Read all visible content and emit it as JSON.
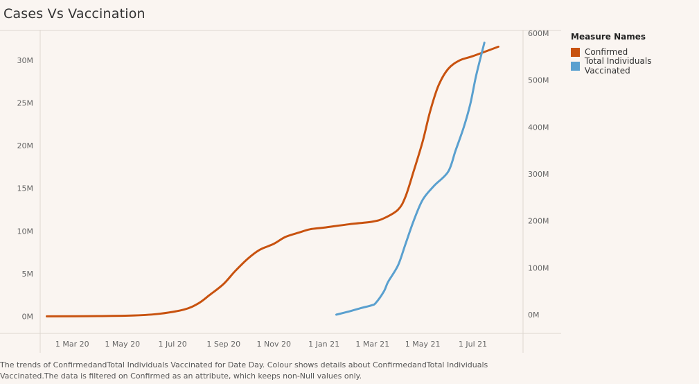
{
  "title": "Cases Vs Vaccination",
  "legend": {
    "title": "Measure Names",
    "items": [
      {
        "label": "Confirmed",
        "color": "#c8520f"
      },
      {
        "label": "Total Individuals Vaccinated",
        "color": "#5aa0cf"
      }
    ]
  },
  "caption": "The trends of ConfirmedandTotal Individuals Vaccinated for Date Day. Colour shows details about ConfirmedandTotal Individuals Vaccinated.The data is filtered on Confirmed as an attribute, which keeps non-Null values only.",
  "chart_data": {
    "type": "line",
    "x_ticks": [
      {
        "date": "2020-03-01",
        "label": "1 Mar 20"
      },
      {
        "date": "2020-05-01",
        "label": "1 May 20"
      },
      {
        "date": "2020-07-01",
        "label": "1 Jul 20"
      },
      {
        "date": "2020-09-01",
        "label": "1 Sep 20"
      },
      {
        "date": "2020-11-01",
        "label": "1 Nov 20"
      },
      {
        "date": "2021-01-01",
        "label": "1 Jan 21"
      },
      {
        "date": "2021-03-01",
        "label": "1 Mar 21"
      },
      {
        "date": "2021-05-01",
        "label": "1 May 21"
      },
      {
        "date": "2021-07-01",
        "label": "1 Jul 21"
      }
    ],
    "xlim": [
      "2020-01-22",
      "2021-08-31"
    ],
    "y_left": {
      "ticks": [
        0,
        5000000,
        10000000,
        15000000,
        20000000,
        25000000,
        30000000
      ],
      "tick_labels": [
        "0M",
        "5M",
        "10M",
        "15M",
        "20M",
        "25M",
        "30M"
      ],
      "range": [
        -2000000,
        33500000
      ]
    },
    "y_right": {
      "ticks": [
        0,
        100000000,
        200000000,
        300000000,
        400000000,
        500000000,
        600000000
      ],
      "tick_labels": [
        "0M",
        "100M",
        "200M",
        "300M",
        "400M",
        "500M",
        "600M"
      ],
      "range": [
        -40000000,
        606000000
      ]
    },
    "series": [
      {
        "name": "Confirmed",
        "axis": "left",
        "color": "#c8520f",
        "points": [
          [
            "2020-01-30",
            0
          ],
          [
            "2020-04-01",
            30000
          ],
          [
            "2020-05-15",
            100000
          ],
          [
            "2020-06-15",
            300000
          ],
          [
            "2020-07-15",
            800000
          ],
          [
            "2020-08-01",
            1500000
          ],
          [
            "2020-08-15",
            2500000
          ],
          [
            "2020-09-01",
            3800000
          ],
          [
            "2020-09-15",
            5300000
          ],
          [
            "2020-10-01",
            6800000
          ],
          [
            "2020-10-15",
            7800000
          ],
          [
            "2020-11-01",
            8500000
          ],
          [
            "2020-11-15",
            9300000
          ],
          [
            "2020-12-01",
            9800000
          ],
          [
            "2020-12-15",
            10200000
          ],
          [
            "2021-01-01",
            10400000
          ],
          [
            "2021-02-01",
            10800000
          ],
          [
            "2021-03-01",
            11100000
          ],
          [
            "2021-03-15",
            11500000
          ],
          [
            "2021-04-01",
            12500000
          ],
          [
            "2021-04-10",
            14000000
          ],
          [
            "2021-04-20",
            17000000
          ],
          [
            "2021-05-01",
            20500000
          ],
          [
            "2021-05-10",
            24000000
          ],
          [
            "2021-05-20",
            27000000
          ],
          [
            "2021-06-01",
            29000000
          ],
          [
            "2021-06-15",
            30000000
          ],
          [
            "2021-07-01",
            30500000
          ],
          [
            "2021-08-01",
            31600000
          ]
        ]
      },
      {
        "name": "Total Individuals Vaccinated",
        "axis": "right",
        "color": "#5aa0cf",
        "points": [
          [
            "2021-01-16",
            0
          ],
          [
            "2021-02-01",
            7000000
          ],
          [
            "2021-02-15",
            14000000
          ],
          [
            "2021-02-28",
            20000000
          ],
          [
            "2021-03-05",
            25000000
          ],
          [
            "2021-03-15",
            50000000
          ],
          [
            "2021-03-20",
            70000000
          ],
          [
            "2021-04-01",
            105000000
          ],
          [
            "2021-04-10",
            150000000
          ],
          [
            "2021-04-20",
            200000000
          ],
          [
            "2021-05-01",
            245000000
          ],
          [
            "2021-05-15",
            275000000
          ],
          [
            "2021-06-01",
            305000000
          ],
          [
            "2021-06-10",
            350000000
          ],
          [
            "2021-06-20",
            400000000
          ],
          [
            "2021-06-28",
            450000000
          ],
          [
            "2021-07-05",
            510000000
          ],
          [
            "2021-07-15",
            580000000
          ]
        ]
      }
    ]
  }
}
